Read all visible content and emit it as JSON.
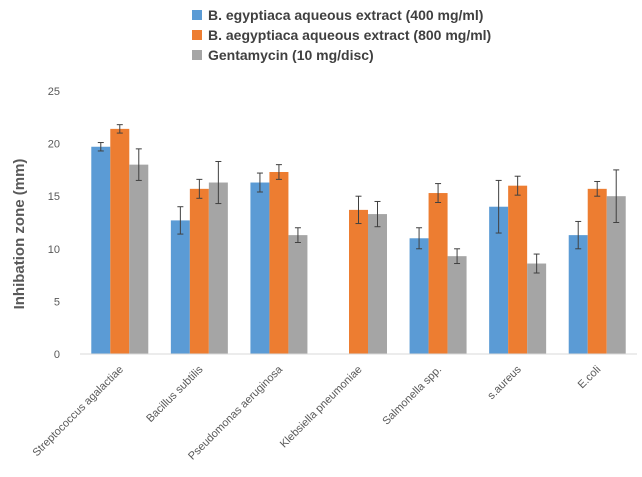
{
  "chart_data": {
    "type": "bar",
    "ylabel": "Inhibation zone (mm)",
    "ylim": [
      0,
      25
    ],
    "yticks": [
      0,
      5,
      10,
      15,
      20,
      25
    ],
    "grid": false,
    "legend_position": "top",
    "categories": [
      "Streptococcus agalactiae",
      "Bacillus subtilis",
      "Pseudomonas aeruginosa",
      "Klebsiella pneumoniae",
      "Salmonella spp.",
      "s.aureus",
      "E.coli"
    ],
    "series": [
      {
        "name": "B. egyptiaca aqueous extract (400 mg/ml)",
        "color": "#5B9BD5",
        "values": [
          19.7,
          12.7,
          16.3,
          null,
          11.0,
          14.0,
          11.3
        ],
        "errors": [
          0.4,
          1.3,
          0.9,
          null,
          1.0,
          2.5,
          1.3
        ]
      },
      {
        "name": "B. aegyptiaca aqueous extract (800 mg/ml)",
        "color": "#ED7D31",
        "values": [
          21.4,
          15.7,
          17.3,
          13.7,
          15.3,
          16.0,
          15.7
        ],
        "errors": [
          0.4,
          0.9,
          0.7,
          1.3,
          0.9,
          0.9,
          0.7
        ]
      },
      {
        "name": "Gentamycin (10 mg/disc)",
        "color": "#A5A5A5",
        "values": [
          18.0,
          16.3,
          11.3,
          13.3,
          9.3,
          8.6,
          15.0
        ],
        "errors": [
          1.5,
          2.0,
          0.7,
          1.2,
          0.7,
          0.9,
          2.5
        ]
      }
    ]
  }
}
